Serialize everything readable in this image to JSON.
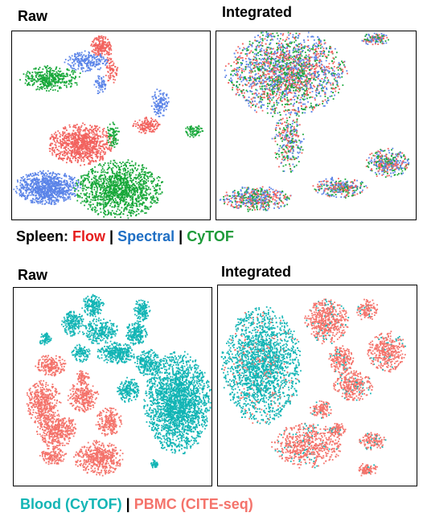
{
  "colors": {
    "flow": "#f2635f",
    "spectral": "#5b84e8",
    "cytof": "#18a83a",
    "blood": "#13b5b5",
    "pbmc": "#f4736b"
  },
  "chart_data": [
    {
      "type": "scatter",
      "title": "Raw",
      "group": "spleen",
      "xlabel": "",
      "ylabel": "",
      "grid": false,
      "series": [
        {
          "name": "Flow",
          "color": "#f2635f",
          "clusters": [
            {
              "x": 0.35,
              "y": 0.6,
              "rx": 0.15,
              "ry": 0.1,
              "n": 900
            },
            {
              "x": 0.45,
              "y": 0.08,
              "rx": 0.05,
              "ry": 0.05,
              "n": 200
            },
            {
              "x": 0.68,
              "y": 0.5,
              "rx": 0.06,
              "ry": 0.04,
              "n": 150
            },
            {
              "x": 0.5,
              "y": 0.2,
              "rx": 0.03,
              "ry": 0.08,
              "n": 80
            }
          ]
        },
        {
          "name": "Spectral",
          "color": "#5b84e8",
          "clusters": [
            {
              "x": 0.18,
              "y": 0.83,
              "rx": 0.15,
              "ry": 0.08,
              "n": 900
            },
            {
              "x": 0.38,
              "y": 0.16,
              "rx": 0.1,
              "ry": 0.05,
              "n": 220
            },
            {
              "x": 0.75,
              "y": 0.38,
              "rx": 0.04,
              "ry": 0.07,
              "n": 120
            },
            {
              "x": 0.45,
              "y": 0.28,
              "rx": 0.03,
              "ry": 0.05,
              "n": 60
            }
          ]
        },
        {
          "name": "CyTOF",
          "color": "#18a83a",
          "clusters": [
            {
              "x": 0.54,
              "y": 0.84,
              "rx": 0.2,
              "ry": 0.14,
              "n": 1300
            },
            {
              "x": 0.2,
              "y": 0.25,
              "rx": 0.14,
              "ry": 0.06,
              "n": 380
            },
            {
              "x": 0.92,
              "y": 0.53,
              "rx": 0.04,
              "ry": 0.03,
              "n": 70
            },
            {
              "x": 0.51,
              "y": 0.55,
              "rx": 0.03,
              "ry": 0.06,
              "n": 80
            }
          ]
        }
      ]
    },
    {
      "type": "scatter",
      "title": "Integrated",
      "group": "spleen",
      "xlabel": "",
      "ylabel": "",
      "grid": false,
      "mixed": true,
      "series_names": [
        "Flow",
        "Spectral",
        "CyTOF"
      ],
      "clusters": [
        {
          "x": 0.35,
          "y": 0.22,
          "rx": 0.27,
          "ry": 0.21,
          "n": 2600
        },
        {
          "x": 0.8,
          "y": 0.04,
          "rx": 0.07,
          "ry": 0.03,
          "n": 120
        },
        {
          "x": 0.36,
          "y": 0.58,
          "rx": 0.07,
          "ry": 0.16,
          "n": 300
        },
        {
          "x": 0.2,
          "y": 0.89,
          "rx": 0.16,
          "ry": 0.06,
          "n": 500
        },
        {
          "x": 0.62,
          "y": 0.83,
          "rx": 0.12,
          "ry": 0.05,
          "n": 300
        },
        {
          "x": 0.86,
          "y": 0.7,
          "rx": 0.1,
          "ry": 0.07,
          "n": 350
        }
      ]
    },
    {
      "type": "scatter",
      "title": "Raw",
      "group": "blood",
      "xlabel": "",
      "ylabel": "",
      "grid": false,
      "series": [
        {
          "name": "Blood (CyTOF)",
          "color": "#13b5b5",
          "clusters": [
            {
              "x": 0.83,
              "y": 0.58,
              "rx": 0.15,
              "ry": 0.23,
              "n": 2200
            },
            {
              "x": 0.4,
              "y": 0.09,
              "rx": 0.05,
              "ry": 0.05,
              "n": 180
            },
            {
              "x": 0.65,
              "y": 0.11,
              "rx": 0.04,
              "ry": 0.05,
              "n": 140
            },
            {
              "x": 0.3,
              "y": 0.18,
              "rx": 0.05,
              "ry": 0.06,
              "n": 200
            },
            {
              "x": 0.44,
              "y": 0.22,
              "rx": 0.08,
              "ry": 0.06,
              "n": 260
            },
            {
              "x": 0.62,
              "y": 0.23,
              "rx": 0.05,
              "ry": 0.06,
              "n": 200
            },
            {
              "x": 0.34,
              "y": 0.33,
              "rx": 0.04,
              "ry": 0.04,
              "n": 110
            },
            {
              "x": 0.52,
              "y": 0.33,
              "rx": 0.09,
              "ry": 0.05,
              "n": 320
            },
            {
              "x": 0.68,
              "y": 0.38,
              "rx": 0.06,
              "ry": 0.06,
              "n": 250
            },
            {
              "x": 0.58,
              "y": 0.52,
              "rx": 0.05,
              "ry": 0.06,
              "n": 180
            },
            {
              "x": 0.16,
              "y": 0.26,
              "rx": 0.03,
              "ry": 0.03,
              "n": 60
            },
            {
              "x": 0.71,
              "y": 0.89,
              "rx": 0.02,
              "ry": 0.02,
              "n": 40
            }
          ]
        },
        {
          "name": "PBMC (CITE-seq)",
          "color": "#f4736b",
          "clusters": [
            {
              "x": 0.19,
              "y": 0.39,
              "rx": 0.07,
              "ry": 0.05,
              "n": 200
            },
            {
              "x": 0.15,
              "y": 0.58,
              "rx": 0.08,
              "ry": 0.1,
              "n": 400
            },
            {
              "x": 0.35,
              "y": 0.55,
              "rx": 0.07,
              "ry": 0.07,
              "n": 260
            },
            {
              "x": 0.22,
              "y": 0.72,
              "rx": 0.09,
              "ry": 0.08,
              "n": 420
            },
            {
              "x": 0.48,
              "y": 0.68,
              "rx": 0.06,
              "ry": 0.07,
              "n": 200
            },
            {
              "x": 0.43,
              "y": 0.86,
              "rx": 0.11,
              "ry": 0.08,
              "n": 480
            },
            {
              "x": 0.2,
              "y": 0.85,
              "rx": 0.06,
              "ry": 0.04,
              "n": 150
            },
            {
              "x": 0.35,
              "y": 0.45,
              "rx": 0.03,
              "ry": 0.03,
              "n": 60
            }
          ]
        }
      ]
    },
    {
      "type": "scatter",
      "title": "Integrated",
      "group": "blood",
      "xlabel": "",
      "ylabel": "",
      "grid": false,
      "mixed": true,
      "series_names": [
        "Blood (CyTOF)",
        "PBMC (CITE-seq)"
      ],
      "clusters": [
        {
          "x": 0.22,
          "y": 0.4,
          "rx": 0.18,
          "ry": 0.26,
          "n": 2000,
          "main": "Blood (CyTOF)"
        },
        {
          "x": 0.55,
          "y": 0.18,
          "rx": 0.1,
          "ry": 0.1,
          "n": 500,
          "main": "PBMC (CITE-seq)"
        },
        {
          "x": 0.75,
          "y": 0.12,
          "rx": 0.05,
          "ry": 0.05,
          "n": 120,
          "main": "PBMC (CITE-seq)"
        },
        {
          "x": 0.85,
          "y": 0.33,
          "rx": 0.09,
          "ry": 0.09,
          "n": 360,
          "main": "PBMC (CITE-seq)"
        },
        {
          "x": 0.62,
          "y": 0.37,
          "rx": 0.06,
          "ry": 0.06,
          "n": 200,
          "main": "PBMC (CITE-seq)"
        },
        {
          "x": 0.68,
          "y": 0.5,
          "rx": 0.09,
          "ry": 0.07,
          "n": 320,
          "main": "PBMC (CITE-seq)"
        },
        {
          "x": 0.52,
          "y": 0.62,
          "rx": 0.05,
          "ry": 0.04,
          "n": 120,
          "main": "PBMC (CITE-seq)"
        },
        {
          "x": 0.45,
          "y": 0.8,
          "rx": 0.16,
          "ry": 0.1,
          "n": 600,
          "main": "PBMC (CITE-seq)"
        },
        {
          "x": 0.78,
          "y": 0.78,
          "rx": 0.06,
          "ry": 0.04,
          "n": 130,
          "main": "PBMC (CITE-seq)"
        },
        {
          "x": 0.75,
          "y": 0.92,
          "rx": 0.05,
          "ry": 0.03,
          "n": 100,
          "main": "PBMC (CITE-seq)"
        },
        {
          "x": 0.6,
          "y": 0.72,
          "rx": 0.04,
          "ry": 0.03,
          "n": 80,
          "main": "PBMC (CITE-seq)"
        }
      ]
    }
  ],
  "legends": {
    "spleen": {
      "prefix": "Spleen:",
      "items": [
        "Flow",
        "Spectral",
        "CyTOF"
      ],
      "separator": "|"
    },
    "blood": {
      "items": [
        "Blood (CyTOF)",
        "PBMC (CITE-seq)"
      ],
      "separator": "|"
    }
  }
}
